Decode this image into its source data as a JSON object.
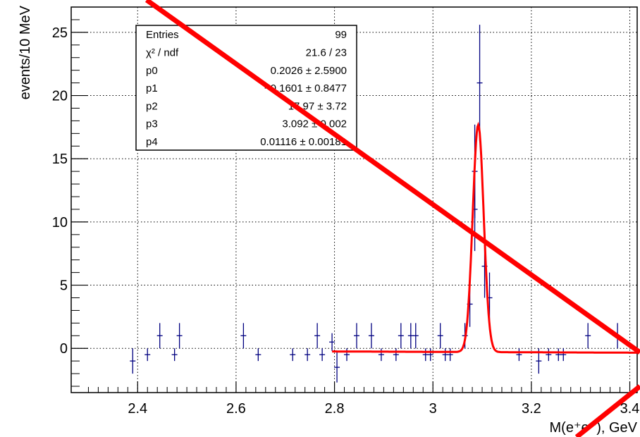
{
  "chart_data": {
    "type": "scatter",
    "xlabel": "M(e⁺e⁻), GeV",
    "ylabel": "events/10 MeV",
    "xlim": [
      2.265,
      3.415
    ],
    "ylim": [
      -3.5,
      27
    ],
    "x_ticks": [
      2.4,
      2.6,
      2.8,
      3,
      3.2,
      3.4
    ],
    "x_tick_labels": [
      "2.4",
      "2.6",
      "2.8",
      "3",
      "3.2",
      "3.4"
    ],
    "y_ticks": [
      0,
      5,
      10,
      15,
      20,
      25
    ],
    "y_tick_labels": [
      "0",
      "5",
      "10",
      "15",
      "20",
      "25"
    ],
    "grid": true,
    "colors": {
      "data": "#000080",
      "fit": "#ff0000",
      "slash": "#ff0000",
      "axis": "#000000",
      "grid": "#000000"
    },
    "stats_box": {
      "rows": [
        {
          "label": "Entries",
          "value": "99"
        },
        {
          "label": "χ² / ndf",
          "value": "21.6 / 23"
        },
        {
          "label": "p0",
          "value": "0.2026 ± 2.5900"
        },
        {
          "label": "p1",
          "value": "−0.1601 ± 0.8477"
        },
        {
          "label": "p2",
          "value": "17.97 ± 3.72"
        },
        {
          "label": "p3",
          "value": "3.092 ± 0.002"
        },
        {
          "label": "p4",
          "value": "0.01116 ± 0.00181"
        }
      ]
    },
    "data_points": [
      {
        "x": 2.39,
        "y": -1,
        "err": 1
      },
      {
        "x": 2.42,
        "y": -0.5,
        "err": 0.5
      },
      {
        "x": 2.445,
        "y": 1,
        "err": 1
      },
      {
        "x": 2.475,
        "y": -0.5,
        "err": 0.5
      },
      {
        "x": 2.485,
        "y": 1,
        "err": 1
      },
      {
        "x": 2.615,
        "y": 1,
        "err": 1
      },
      {
        "x": 2.645,
        "y": -0.5,
        "err": 0.5
      },
      {
        "x": 2.715,
        "y": -0.5,
        "err": 0.5
      },
      {
        "x": 2.745,
        "y": -0.5,
        "err": 0.5
      },
      {
        "x": 2.765,
        "y": 1,
        "err": 1
      },
      {
        "x": 2.775,
        "y": -0.5,
        "err": 0.5
      },
      {
        "x": 2.795,
        "y": 0.5,
        "err": 0.7
      },
      {
        "x": 2.805,
        "y": -1.5,
        "err": 1.2
      },
      {
        "x": 2.825,
        "y": -0.5,
        "err": 0.5
      },
      {
        "x": 2.845,
        "y": 1,
        "err": 1
      },
      {
        "x": 2.875,
        "y": 1,
        "err": 1
      },
      {
        "x": 2.895,
        "y": -0.5,
        "err": 0.5
      },
      {
        "x": 2.925,
        "y": -0.5,
        "err": 0.5
      },
      {
        "x": 2.935,
        "y": 1,
        "err": 1
      },
      {
        "x": 2.955,
        "y": 1,
        "err": 1
      },
      {
        "x": 2.965,
        "y": 1,
        "err": 1
      },
      {
        "x": 2.985,
        "y": -0.5,
        "err": 0.5
      },
      {
        "x": 2.995,
        "y": -0.5,
        "err": 0.5
      },
      {
        "x": 3.015,
        "y": 1,
        "err": 1
      },
      {
        "x": 3.025,
        "y": -0.5,
        "err": 0.5
      },
      {
        "x": 3.035,
        "y": -0.5,
        "err": 0.5
      },
      {
        "x": 3.065,
        "y": 1,
        "err": 1
      },
      {
        "x": 3.075,
        "y": 3.5,
        "err": 1.8
      },
      {
        "x": 3.085,
        "y": 14,
        "err": 3.7
      },
      {
        "x": 3.085,
        "y": 11,
        "err": 3.3
      },
      {
        "x": 3.095,
        "y": 21,
        "err": 4.6
      },
      {
        "x": 3.105,
        "y": 6.5,
        "err": 2.5
      },
      {
        "x": 3.115,
        "y": 4,
        "err": 2
      },
      {
        "x": 3.175,
        "y": -0.5,
        "err": 0.5
      },
      {
        "x": 3.215,
        "y": -1,
        "err": 1
      },
      {
        "x": 3.235,
        "y": -0.5,
        "err": 0.5
      },
      {
        "x": 3.255,
        "y": -0.5,
        "err": 0.5
      },
      {
        "x": 3.265,
        "y": -0.5,
        "err": 0.5
      },
      {
        "x": 3.315,
        "y": 1,
        "err": 1
      },
      {
        "x": 3.375,
        "y": 1,
        "err": 1
      }
    ],
    "fit": {
      "function": "p0 + p1*x + p2*exp(-0.5*((x-p3)/p4)^2)",
      "x_range": [
        2.795,
        3.415
      ],
      "p0": 0.2026,
      "p1": -0.1601,
      "p2": 17.97,
      "p3": 3.092,
      "p4": 0.01116
    }
  }
}
